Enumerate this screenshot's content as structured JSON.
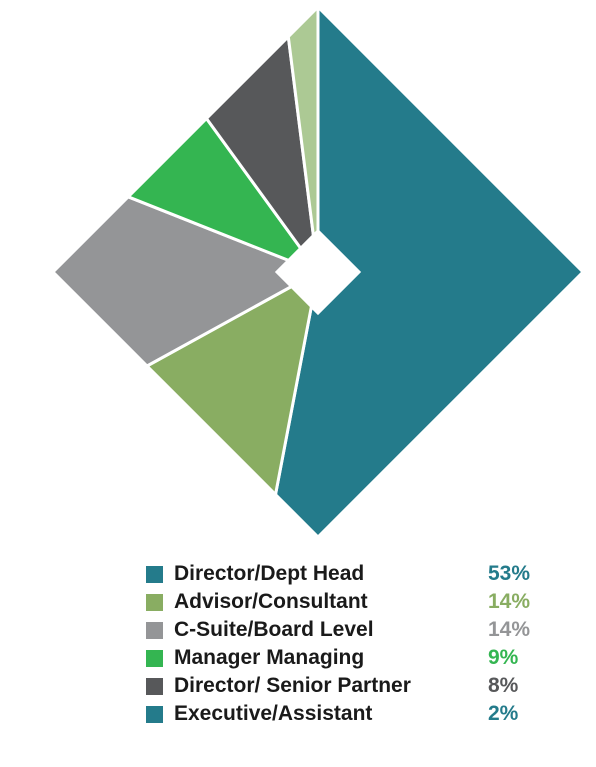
{
  "chart_data": {
    "type": "pie",
    "categories": [
      "Director/Dept Head",
      "Advisor/Consultant",
      "C-Suite/Board Level",
      "Manager Managing",
      "Director/ Senior Partner",
      "Executive/Assistant"
    ],
    "values": [
      53,
      14,
      14,
      9,
      8,
      2
    ],
    "value_labels": [
      "53%",
      "14%",
      "14%",
      "9%",
      "8%",
      "2%"
    ],
    "colors": [
      "#247b8b",
      "#89ad62",
      "#949597",
      "#34b551",
      "#57585a",
      "#acc994"
    ],
    "value_colors": [
      "#247b8b",
      "#89ad62",
      "#949597",
      "#34b551",
      "#57585a",
      "#247b8b"
    ],
    "legend_colors": [
      "#247b8b",
      "#89ad62",
      "#949597",
      "#34b551",
      "#57585a",
      "#247b8b"
    ],
    "shape": "diamond",
    "legend_position": "bottom"
  }
}
